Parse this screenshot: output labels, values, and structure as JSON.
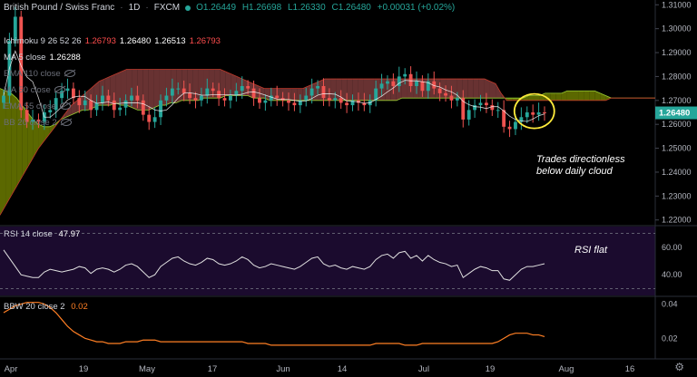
{
  "header": {
    "title": "British Pound / Swiss Franc",
    "interval": "1D",
    "exchange": "FXCM",
    "open": "O1.26449",
    "high": "H1.26698",
    "low": "L1.26330",
    "close": "C1.26480",
    "change": "+0.00031 (+0.02%)"
  },
  "legend": [
    {
      "label": "Ichimoku 9 26 52 26",
      "values": [
        "1.26793",
        "1.26480",
        "1.26513",
        "1.26793"
      ],
      "colors": [
        "#ff4d4d",
        "#ffffff",
        "#ffffff",
        "#ff4d4d"
      ],
      "hidden": false
    },
    {
      "label": "MA 5 close",
      "values": [
        "1.26288"
      ],
      "colors": [
        "#ffffff"
      ],
      "hidden": false
    },
    {
      "label": "EMA 110 close",
      "values": [],
      "hidden": true
    },
    {
      "label": "MA 50 close",
      "values": [],
      "hidden": true
    },
    {
      "label": "EMA 55 close",
      "values": [],
      "hidden": true
    },
    {
      "label": "BB 20 close 2",
      "values": [],
      "hidden": true
    }
  ],
  "price_tag": "1.26480",
  "annotations": {
    "price_note_1": "Trades directionless",
    "price_note_2": "below daily cloud",
    "rsi_note": "RSI flat"
  },
  "rsi": {
    "label": "RSI 14 close",
    "value": "47.97"
  },
  "bbw": {
    "label": "BBW 20 close 2",
    "value": "0.02"
  },
  "colors": {
    "up": "#26a69a",
    "down": "#ef5350",
    "cloud_bull": "#6b7a00",
    "cloud_bear": "#7a3b3b",
    "rsi_bg": "#1b0b2e",
    "bbw_line": "#ff7f24",
    "highlight": "#ffeb3b"
  },
  "chart_data": [
    {
      "type": "candlestick",
      "x_ticks": [
        "Apr",
        "19",
        "May",
        "17",
        "Jun",
        "14",
        "Jul",
        "19",
        "Aug",
        "16"
      ],
      "y_ticks": [
        1.31,
        1.3,
        1.29,
        1.28,
        1.27,
        1.26,
        1.25,
        1.24,
        1.23,
        1.22
      ],
      "ylim": [
        1.218,
        1.312
      ],
      "closes": [
        1.272,
        1.295,
        1.305,
        1.266,
        1.261,
        1.262,
        1.261,
        1.265,
        1.266,
        1.271,
        1.274,
        1.275,
        1.271,
        1.268,
        1.27,
        1.266,
        1.269,
        1.272,
        1.27,
        1.266,
        1.267,
        1.27,
        1.272,
        1.27,
        1.264,
        1.261,
        1.263,
        1.27,
        1.272,
        1.275,
        1.275,
        1.273,
        1.271,
        1.27,
        1.272,
        1.275,
        1.274,
        1.271,
        1.27,
        1.272,
        1.274,
        1.276,
        1.275,
        1.271,
        1.269,
        1.27,
        1.272,
        1.271,
        1.27,
        1.269,
        1.268,
        1.27,
        1.272,
        1.275,
        1.276,
        1.271,
        1.27,
        1.271,
        1.269,
        1.268,
        1.27,
        1.269,
        1.268,
        1.27,
        1.275,
        1.277,
        1.278,
        1.276,
        1.28,
        1.281,
        1.276,
        1.278,
        1.274,
        1.278,
        1.275,
        1.273,
        1.272,
        1.27,
        1.271,
        1.262,
        1.266,
        1.268,
        1.269,
        1.268,
        1.266,
        1.266,
        1.259,
        1.258,
        1.261,
        1.263,
        1.265,
        1.264,
        1.265,
        1.2648
      ],
      "cloud_span_a": [
        1.275,
        1.274,
        1.273,
        1.271,
        1.268,
        1.265,
        1.262,
        1.26,
        1.259,
        1.259,
        1.26,
        1.262,
        1.263,
        1.264,
        1.265,
        1.266,
        1.266,
        1.267,
        1.268,
        1.268,
        1.268,
        1.269,
        1.268,
        1.268,
        1.267,
        1.266,
        1.266,
        1.266,
        1.267,
        1.268,
        1.268,
        1.269,
        1.269,
        1.27,
        1.27,
        1.27,
        1.27,
        1.271,
        1.271,
        1.271,
        1.271,
        1.272,
        1.272,
        1.272,
        1.272,
        1.272,
        1.271,
        1.271,
        1.271,
        1.27,
        1.27,
        1.27,
        1.27,
        1.27,
        1.27,
        1.27,
        1.27,
        1.27,
        1.27,
        1.27,
        1.27,
        1.27,
        1.27,
        1.27,
        1.27,
        1.27,
        1.27,
        1.27,
        1.27,
        1.27,
        1.27,
        1.27,
        1.27,
        1.271,
        1.271,
        1.271,
        1.271,
        1.271,
        1.271,
        1.271,
        1.271,
        1.271,
        1.271,
        1.271,
        1.271,
        1.271,
        1.271,
        1.271,
        1.271,
        1.271,
        1.271,
        1.271,
        1.271,
        1.271,
        1.271,
        1.271,
        1.272,
        1.272,
        1.272,
        1.273,
        1.273,
        1.273,
        1.273,
        1.274,
        1.274,
        1.274,
        1.274,
        1.274,
        1.274,
        1.273,
        1.272,
        1.271,
        1.271,
        1.271,
        1.271,
        1.271,
        1.271,
        1.271,
        1.271,
        1.271
      ],
      "cloud_span_b": [
        1.222,
        1.226,
        1.23,
        1.234,
        1.238,
        1.242,
        1.246,
        1.25,
        1.253,
        1.256,
        1.259,
        1.262,
        1.265,
        1.268,
        1.27,
        1.272,
        1.274,
        1.276,
        1.278,
        1.279,
        1.28,
        1.281,
        1.282,
        1.283,
        1.283,
        1.283,
        1.283,
        1.283,
        1.283,
        1.283,
        1.283,
        1.283,
        1.283,
        1.283,
        1.283,
        1.283,
        1.283,
        1.283,
        1.283,
        1.283,
        1.283,
        1.282,
        1.281,
        1.28,
        1.279,
        1.278,
        1.277,
        1.276,
        1.275,
        1.275,
        1.275,
        1.275,
        1.275,
        1.275,
        1.275,
        1.275,
        1.276,
        1.277,
        1.278,
        1.279,
        1.279,
        1.279,
        1.279,
        1.279,
        1.279,
        1.279,
        1.279,
        1.279,
        1.279,
        1.279,
        1.279,
        1.279,
        1.279,
        1.279,
        1.279,
        1.279,
        1.279,
        1.279,
        1.279,
        1.279,
        1.279,
        1.279,
        1.279,
        1.279,
        1.279,
        1.279,
        1.279,
        1.279,
        1.279,
        1.278,
        1.277,
        1.273,
        1.27,
        1.27,
        1.27,
        1.27,
        1.27,
        1.27,
        1.27,
        1.27,
        1.27,
        1.27,
        1.27,
        1.27,
        1.27,
        1.27,
        1.27,
        1.27,
        1.27,
        1.27,
        1.27,
        1.271,
        1.271,
        1.271,
        1.271,
        1.271,
        1.271,
        1.271,
        1.271,
        1.271
      ],
      "rsi_values": [
        58,
        52,
        46,
        40,
        39,
        38,
        38,
        42,
        44,
        43,
        42,
        43,
        44,
        46,
        45,
        41,
        44,
        45,
        44,
        42,
        44,
        47,
        48,
        46,
        42,
        38,
        40,
        46,
        49,
        52,
        53,
        50,
        48,
        47,
        49,
        52,
        51,
        48,
        47,
        48,
        50,
        53,
        51,
        47,
        45,
        46,
        48,
        47,
        46,
        45,
        44,
        46,
        49,
        52,
        53,
        48,
        46,
        47,
        45,
        44,
        46,
        45,
        44,
        46,
        51,
        54,
        55,
        52,
        56,
        57,
        52,
        54,
        50,
        54,
        51,
        49,
        48,
        46,
        47,
        38,
        41,
        44,
        46,
        45,
        43,
        43,
        37,
        36,
        40,
        44,
        46,
        46,
        47,
        48
      ],
      "rsi_ticks": [
        60,
        40
      ],
      "bbw_values": [
        0.035,
        0.037,
        0.039,
        0.04,
        0.041,
        0.041,
        0.041,
        0.04,
        0.038,
        0.035,
        0.031,
        0.027,
        0.024,
        0.022,
        0.02,
        0.019,
        0.018,
        0.018,
        0.017,
        0.017,
        0.017,
        0.018,
        0.018,
        0.018,
        0.019,
        0.019,
        0.019,
        0.018,
        0.018,
        0.018,
        0.018,
        0.018,
        0.018,
        0.018,
        0.018,
        0.018,
        0.018,
        0.018,
        0.018,
        0.018,
        0.018,
        0.018,
        0.017,
        0.017,
        0.017,
        0.017,
        0.016,
        0.016,
        0.016,
        0.016,
        0.016,
        0.016,
        0.016,
        0.016,
        0.016,
        0.016,
        0.016,
        0.016,
        0.016,
        0.016,
        0.016,
        0.016,
        0.016,
        0.016,
        0.017,
        0.017,
        0.017,
        0.017,
        0.017,
        0.016,
        0.016,
        0.016,
        0.017,
        0.017,
        0.017,
        0.017,
        0.017,
        0.017,
        0.017,
        0.017,
        0.017,
        0.017,
        0.017,
        0.017,
        0.017,
        0.018,
        0.02,
        0.022,
        0.023,
        0.023,
        0.023,
        0.022,
        0.022,
        0.021
      ],
      "bbw_ticks": [
        0.04,
        0.02
      ]
    }
  ]
}
